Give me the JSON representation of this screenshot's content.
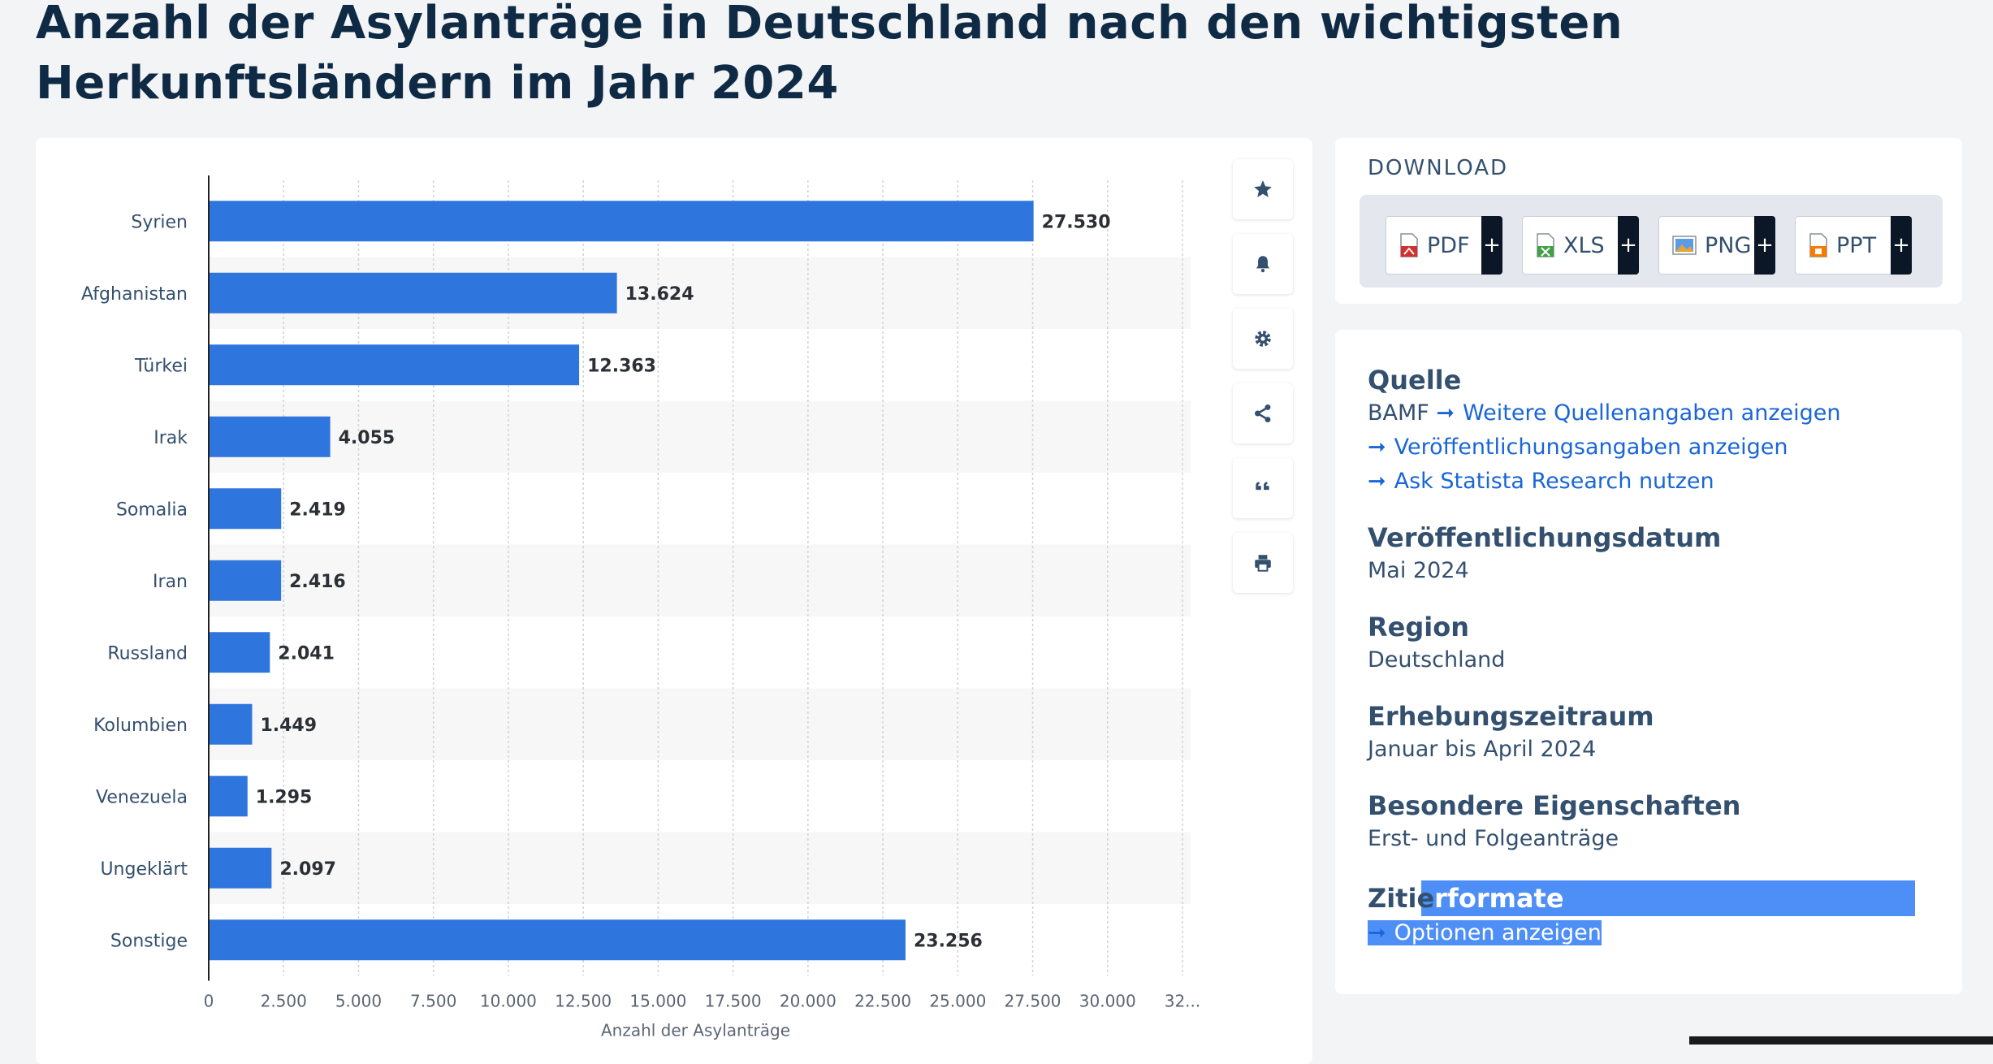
{
  "page": {
    "title": "Anzahl der Asylanträge in Deutschland nach den wichtigsten Herkunftsländern im Jahr 2024"
  },
  "toolbar": {
    "buttons": [
      "star-icon",
      "bell-icon",
      "gear-icon",
      "share-icon",
      "quote-icon",
      "print-icon"
    ]
  },
  "download": {
    "heading": "DOWNLOAD",
    "buttons": [
      {
        "label": "PDF",
        "plus": "+",
        "icon": "pdf-file-icon"
      },
      {
        "label": "XLS",
        "plus": "+",
        "icon": "xls-file-icon"
      },
      {
        "label": "PNG",
        "plus": "+",
        "icon": "png-file-icon"
      },
      {
        "label": "PPT",
        "plus": "+",
        "icon": "ppt-file-icon"
      }
    ]
  },
  "info": {
    "source_label": "Quelle",
    "source_value": "BAMF",
    "source_link": "Weitere Quellenangaben anzeigen",
    "publication_link": "Veröffentlichungsangaben anzeigen",
    "research_link": "Ask Statista Research nutzen",
    "pubdate_label": "Veröffentlichungsdatum",
    "pubdate_value": "Mai 2024",
    "region_label": "Region",
    "region_value": "Deutschland",
    "period_label": "Erhebungszeitraum",
    "period_value": "Januar bis April 2024",
    "special_label": "Besondere Eigenschaften",
    "special_value": "Erst- und Folgeanträge",
    "citation_label_a": "Zitie",
    "citation_label_b": "rformate",
    "citation_link": "Optionen anzeigen"
  },
  "colors": {
    "bar": "#2e75dd",
    "band": "#f7f7f7",
    "link": "#1a66d6",
    "selection": "#4d8ef7"
  },
  "chart_data": {
    "type": "bar",
    "orientation": "horizontal",
    "categories": [
      "Syrien",
      "Afghanistan",
      "Türkei",
      "Irak",
      "Somalia",
      "Iran",
      "Russland",
      "Kolumbien",
      "Venezuela",
      "Ungeklärt",
      "Sonstige"
    ],
    "values": [
      27530,
      13624,
      12363,
      4055,
      2419,
      2416,
      2041,
      1449,
      1295,
      2097,
      23256
    ],
    "value_labels": [
      "27.530",
      "13.624",
      "12.363",
      "4.055",
      "2.419",
      "2.416",
      "2.041",
      "1.449",
      "1.295",
      "2.097",
      "23.256"
    ],
    "xlabel": "Anzahl der Asylanträge",
    "ylabel": "",
    "xlim": [
      0,
      32500
    ],
    "xticks": [
      0,
      2500,
      5000,
      7500,
      10000,
      12500,
      15000,
      17500,
      20000,
      22500,
      25000,
      27500,
      30000,
      32500
    ],
    "xtick_labels": [
      "0",
      "2.500",
      "5.000",
      "7.500",
      "10.000",
      "12.500",
      "15.000",
      "17.500",
      "20.000",
      "22.500",
      "25.000",
      "27.500",
      "30.000",
      "32..."
    ],
    "grid": true,
    "legend": "none"
  }
}
